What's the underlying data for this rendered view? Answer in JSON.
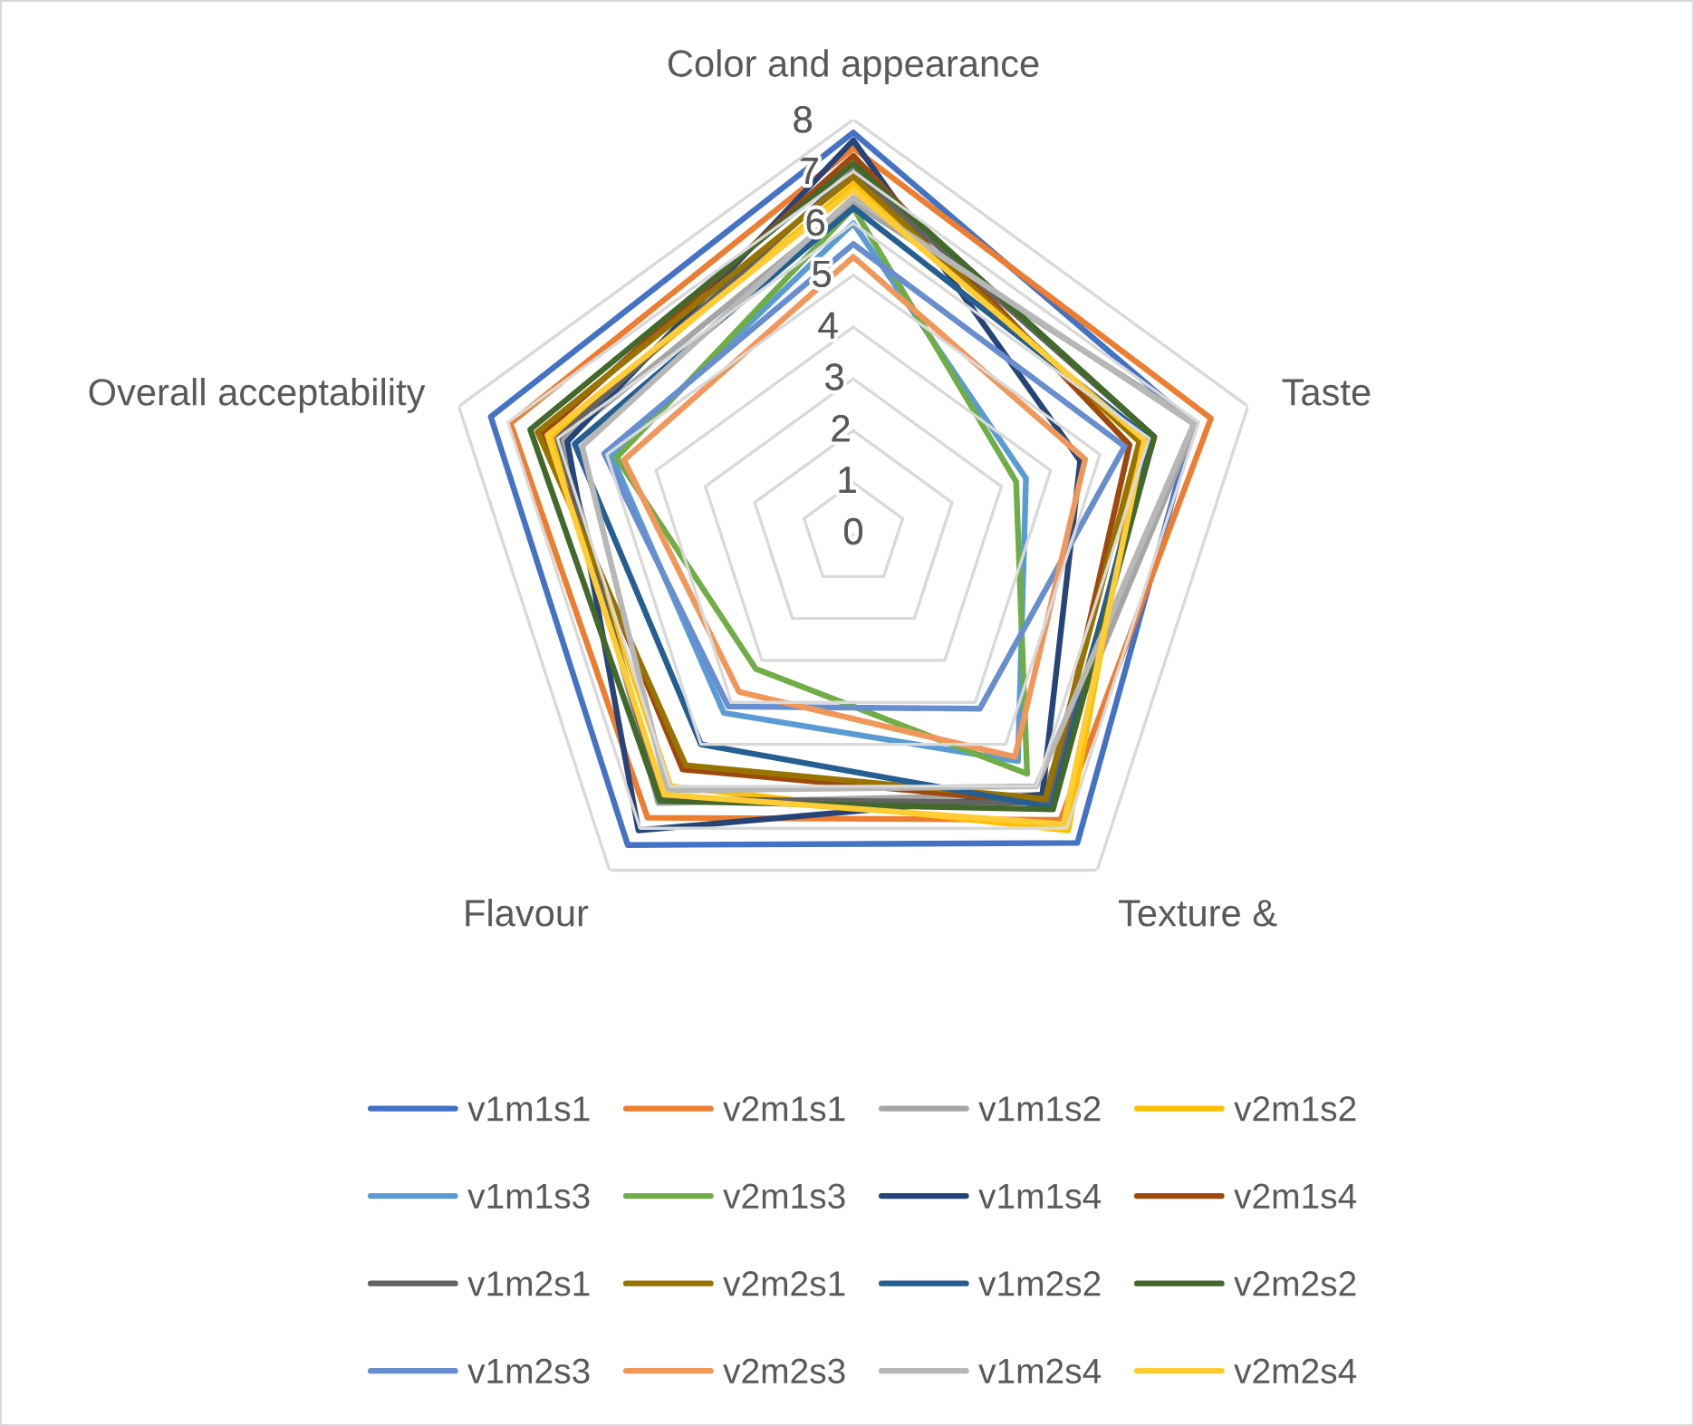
{
  "chart_data": {
    "type": "radar",
    "categories": [
      "Color and appearance",
      "Taste",
      "Texture &",
      "Flavour",
      "Overall acceptability"
    ],
    "series": [
      {
        "name": "v1m1s1",
        "color": "#4472c4",
        "values": [
          7.75,
          6.9,
          7.35,
          7.4,
          7.35
        ]
      },
      {
        "name": "v2m1s1",
        "color": "#ed7d31",
        "values": [
          7.45,
          7.25,
          6.8,
          6.75,
          6.95
        ]
      },
      {
        "name": "v1m1s2",
        "color": "#a5a5a5",
        "values": [
          6.4,
          6.95,
          6.2,
          6.4,
          5.9
        ]
      },
      {
        "name": "v2m1s2",
        "color": "#ffc000",
        "values": [
          6.75,
          5.8,
          7.05,
          6.0,
          6.1
        ]
      },
      {
        "name": "v1m1s3",
        "color": "#5b9bd5",
        "values": [
          6.0,
          3.5,
          5.4,
          4.25,
          4.9
        ]
      },
      {
        "name": "v2m1s3",
        "color": "#70ad47",
        "values": [
          6.3,
          3.3,
          5.7,
          3.2,
          4.8
        ]
      },
      {
        "name": "v1m1s4",
        "color": "#264478",
        "values": [
          7.6,
          4.6,
          6.2,
          7.05,
          5.8
        ]
      },
      {
        "name": "v2m1s4",
        "color": "#9e480e",
        "values": [
          7.3,
          5.6,
          6.4,
          5.6,
          6.3
        ]
      },
      {
        "name": "v1m2s1",
        "color": "#636363",
        "values": [
          7.0,
          6.1,
          6.4,
          6.3,
          6.0
        ]
      },
      {
        "name": "v2m2s1",
        "color": "#997300",
        "values": [
          6.9,
          5.8,
          6.3,
          5.5,
          6.4
        ]
      },
      {
        "name": "v1m2s2",
        "color": "#255e91",
        "values": [
          6.3,
          6.0,
          6.5,
          5.0,
          5.65
        ]
      },
      {
        "name": "v2m2s2",
        "color": "#43682b",
        "values": [
          7.15,
          6.1,
          6.55,
          6.35,
          6.55
        ]
      },
      {
        "name": "v1m2s3",
        "color": "#698ed0",
        "values": [
          5.6,
          5.5,
          4.15,
          4.1,
          5.05
        ]
      },
      {
        "name": "v2m2s3",
        "color": "#f1975a",
        "values": [
          5.35,
          4.7,
          5.3,
          3.75,
          4.65
        ]
      },
      {
        "name": "v1m2s4",
        "color": "#b7b7b7",
        "values": [
          6.5,
          6.9,
          6.0,
          6.1,
          5.5
        ]
      },
      {
        "name": "v2m2s4",
        "color": "#ffcd33",
        "values": [
          6.65,
          5.9,
          6.9,
          6.2,
          6.2
        ]
      }
    ],
    "ylim": [
      0,
      8
    ],
    "yticks": [
      0,
      1,
      2,
      3,
      4,
      5,
      6,
      7,
      8
    ],
    "grid": true,
    "legend": "bottom"
  }
}
